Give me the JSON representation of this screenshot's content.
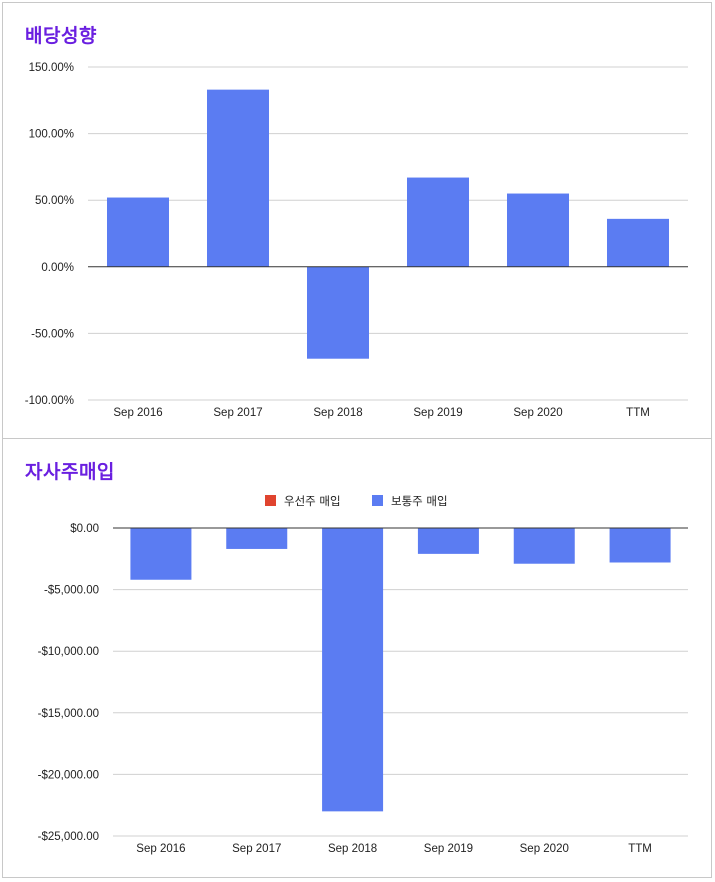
{
  "chart_data": [
    {
      "type": "bar",
      "title": "배당성향",
      "categories": [
        "Sep 2016",
        "Sep 2017",
        "Sep 2018",
        "Sep 2019",
        "Sep 2020",
        "TTM"
      ],
      "values": [
        52,
        133,
        -69,
        67,
        55,
        36
      ],
      "ylim": [
        -100,
        150
      ],
      "yticks": [
        150,
        100,
        50,
        0,
        -50,
        -100
      ],
      "ytick_labels": [
        "150.00%",
        "100.00%",
        "50.00%",
        "0.00%",
        "-50.00%",
        "-100.00%"
      ],
      "grid": true,
      "color": "#5b7cf2"
    },
    {
      "type": "bar",
      "title": "자사주매입",
      "categories": [
        "Sep 2016",
        "Sep 2017",
        "Sep 2018",
        "Sep 2019",
        "Sep 2020",
        "TTM"
      ],
      "series": [
        {
          "name": "우선주 매입",
          "color": "#e0442f",
          "values": [
            0,
            0,
            0,
            0,
            0,
            0
          ]
        },
        {
          "name": "보통주 매입",
          "color": "#5b7cf2",
          "values": [
            -4200,
            -1700,
            -23000,
            -2100,
            -2900,
            -2800
          ]
        }
      ],
      "ylim": [
        -25000,
        0
      ],
      "yticks": [
        0,
        -5000,
        -10000,
        -15000,
        -20000,
        -25000
      ],
      "ytick_labels": [
        "$0.00",
        "-$5,000.00",
        "-$10,000.00",
        "-$15,000.00",
        "-$20,000.00",
        "-$25,000.00"
      ],
      "legend_position": "top-center",
      "grid": true
    }
  ]
}
